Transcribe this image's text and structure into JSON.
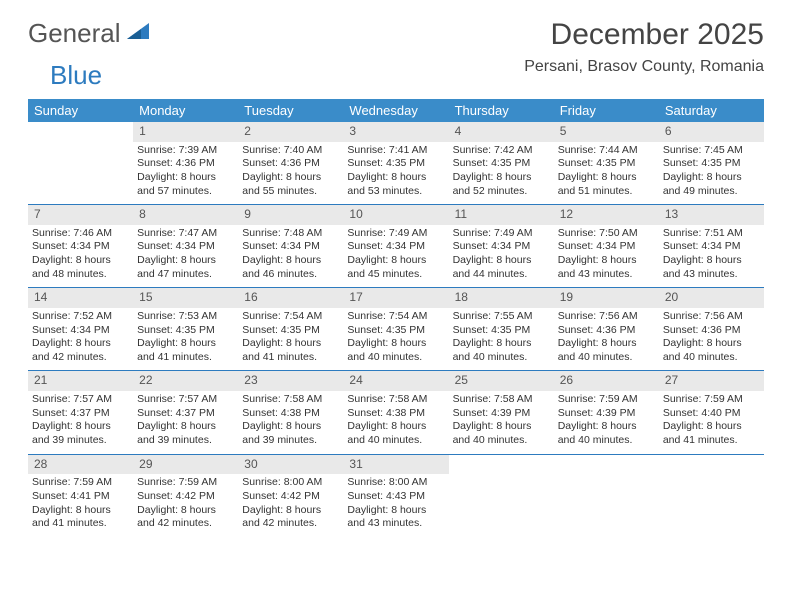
{
  "logo": {
    "word1": "General",
    "word2": "Blue"
  },
  "title": "December 2025",
  "location": "Persani, Brasov County, Romania",
  "colors": {
    "header_bg": "#3a8cc9",
    "accent_line": "#2d7bbf",
    "daynum_bg": "#e9e9e9",
    "text": "#333333",
    "muted": "#555555",
    "bg": "#ffffff"
  },
  "day_headers": [
    "Sunday",
    "Monday",
    "Tuesday",
    "Wednesday",
    "Thursday",
    "Friday",
    "Saturday"
  ],
  "weeks": [
    {
      "nums": [
        "",
        "1",
        "2",
        "3",
        "4",
        "5",
        "6"
      ],
      "cells": [
        {
          "blank": true
        },
        {
          "sunrise": "7:39 AM",
          "sunset": "4:36 PM",
          "daylight": "8 hours and 57 minutes."
        },
        {
          "sunrise": "7:40 AM",
          "sunset": "4:36 PM",
          "daylight": "8 hours and 55 minutes."
        },
        {
          "sunrise": "7:41 AM",
          "sunset": "4:35 PM",
          "daylight": "8 hours and 53 minutes."
        },
        {
          "sunrise": "7:42 AM",
          "sunset": "4:35 PM",
          "daylight": "8 hours and 52 minutes."
        },
        {
          "sunrise": "7:44 AM",
          "sunset": "4:35 PM",
          "daylight": "8 hours and 51 minutes."
        },
        {
          "sunrise": "7:45 AM",
          "sunset": "4:35 PM",
          "daylight": "8 hours and 49 minutes."
        }
      ]
    },
    {
      "nums": [
        "7",
        "8",
        "9",
        "10",
        "11",
        "12",
        "13"
      ],
      "cells": [
        {
          "sunrise": "7:46 AM",
          "sunset": "4:34 PM",
          "daylight": "8 hours and 48 minutes."
        },
        {
          "sunrise": "7:47 AM",
          "sunset": "4:34 PM",
          "daylight": "8 hours and 47 minutes."
        },
        {
          "sunrise": "7:48 AM",
          "sunset": "4:34 PM",
          "daylight": "8 hours and 46 minutes."
        },
        {
          "sunrise": "7:49 AM",
          "sunset": "4:34 PM",
          "daylight": "8 hours and 45 minutes."
        },
        {
          "sunrise": "7:49 AM",
          "sunset": "4:34 PM",
          "daylight": "8 hours and 44 minutes."
        },
        {
          "sunrise": "7:50 AM",
          "sunset": "4:34 PM",
          "daylight": "8 hours and 43 minutes."
        },
        {
          "sunrise": "7:51 AM",
          "sunset": "4:34 PM",
          "daylight": "8 hours and 43 minutes."
        }
      ]
    },
    {
      "nums": [
        "14",
        "15",
        "16",
        "17",
        "18",
        "19",
        "20"
      ],
      "cells": [
        {
          "sunrise": "7:52 AM",
          "sunset": "4:34 PM",
          "daylight": "8 hours and 42 minutes."
        },
        {
          "sunrise": "7:53 AM",
          "sunset": "4:35 PM",
          "daylight": "8 hours and 41 minutes."
        },
        {
          "sunrise": "7:54 AM",
          "sunset": "4:35 PM",
          "daylight": "8 hours and 41 minutes."
        },
        {
          "sunrise": "7:54 AM",
          "sunset": "4:35 PM",
          "daylight": "8 hours and 40 minutes."
        },
        {
          "sunrise": "7:55 AM",
          "sunset": "4:35 PM",
          "daylight": "8 hours and 40 minutes."
        },
        {
          "sunrise": "7:56 AM",
          "sunset": "4:36 PM",
          "daylight": "8 hours and 40 minutes."
        },
        {
          "sunrise": "7:56 AM",
          "sunset": "4:36 PM",
          "daylight": "8 hours and 40 minutes."
        }
      ]
    },
    {
      "nums": [
        "21",
        "22",
        "23",
        "24",
        "25",
        "26",
        "27"
      ],
      "cells": [
        {
          "sunrise": "7:57 AM",
          "sunset": "4:37 PM",
          "daylight": "8 hours and 39 minutes."
        },
        {
          "sunrise": "7:57 AM",
          "sunset": "4:37 PM",
          "daylight": "8 hours and 39 minutes."
        },
        {
          "sunrise": "7:58 AM",
          "sunset": "4:38 PM",
          "daylight": "8 hours and 39 minutes."
        },
        {
          "sunrise": "7:58 AM",
          "sunset": "4:38 PM",
          "daylight": "8 hours and 40 minutes."
        },
        {
          "sunrise": "7:58 AM",
          "sunset": "4:39 PM",
          "daylight": "8 hours and 40 minutes."
        },
        {
          "sunrise": "7:59 AM",
          "sunset": "4:39 PM",
          "daylight": "8 hours and 40 minutes."
        },
        {
          "sunrise": "7:59 AM",
          "sunset": "4:40 PM",
          "daylight": "8 hours and 41 minutes."
        }
      ]
    },
    {
      "nums": [
        "28",
        "29",
        "30",
        "31",
        "",
        "",
        ""
      ],
      "cells": [
        {
          "sunrise": "7:59 AM",
          "sunset": "4:41 PM",
          "daylight": "8 hours and 41 minutes."
        },
        {
          "sunrise": "7:59 AM",
          "sunset": "4:42 PM",
          "daylight": "8 hours and 42 minutes."
        },
        {
          "sunrise": "8:00 AM",
          "sunset": "4:42 PM",
          "daylight": "8 hours and 42 minutes."
        },
        {
          "sunrise": "8:00 AM",
          "sunset": "4:43 PM",
          "daylight": "8 hours and 43 minutes."
        },
        {
          "blank": true
        },
        {
          "blank": true
        },
        {
          "blank": true
        }
      ]
    }
  ],
  "labels": {
    "sunrise": "Sunrise:",
    "sunset": "Sunset:",
    "daylight": "Daylight:"
  }
}
